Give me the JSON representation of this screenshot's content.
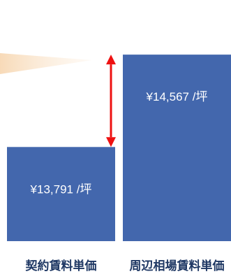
{
  "chart_data": {
    "type": "bar",
    "title": "",
    "xlabel": "",
    "ylabel": "",
    "categories": [
      "契約賃料単価",
      "周辺相場賃料単価"
    ],
    "series": [
      {
        "values": [
          13791,
          14567
        ],
        "data_labels": [
          "¥13,791 /坪",
          "¥14,567 /坪"
        ]
      }
    ],
    "y_baseline": 13000,
    "bar_color": "#4367ad",
    "grid": false,
    "legend": "none",
    "annotations": {
      "difference_arrow_color": "#ee1111",
      "callout_color": "#fae3c8"
    }
  }
}
